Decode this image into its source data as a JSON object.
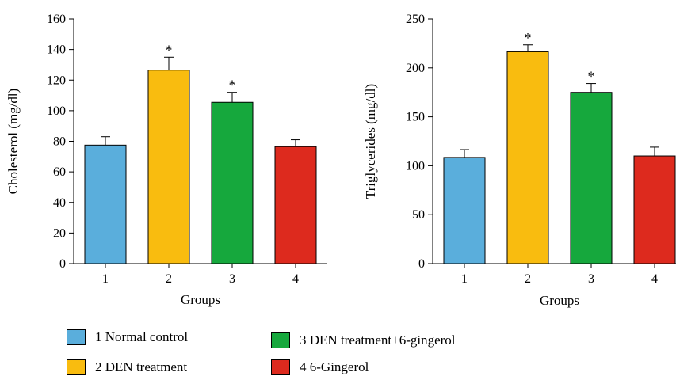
{
  "chart_data": [
    {
      "type": "bar",
      "categories": [
        "1",
        "2",
        "3",
        "4"
      ],
      "values": [
        77.5,
        126.5,
        105.5,
        76.5
      ],
      "errors": [
        5.5,
        8.5,
        6.5,
        4.5
      ],
      "significant": [
        false,
        true,
        true,
        false
      ],
      "significance_marker": "*",
      "xlabel": "Groups",
      "ylabel": "Cholesterol (mg/dl)",
      "ylim": [
        0,
        160
      ],
      "yticks": [
        0,
        20,
        40,
        60,
        80,
        100,
        120,
        140,
        160
      ],
      "colors": [
        "#5aaedc",
        "#f9bc0f",
        "#16a83d",
        "#dd2a1e"
      ]
    },
    {
      "type": "bar",
      "categories": [
        "1",
        "2",
        "3",
        "4"
      ],
      "values": [
        108.5,
        216.5,
        175,
        110
      ],
      "errors": [
        8,
        7,
        9,
        9
      ],
      "significant": [
        false,
        true,
        true,
        false
      ],
      "significance_marker": "*",
      "xlabel": "Groups",
      "ylabel": "Triglycerides (mg/dl)",
      "ylim": [
        0,
        250
      ],
      "yticks": [
        0,
        50,
        100,
        150,
        200,
        250
      ],
      "colors": [
        "#5aaedc",
        "#f9bc0f",
        "#16a83d",
        "#dd2a1e"
      ]
    }
  ],
  "legend": {
    "items": [
      {
        "label": "1 Normal control",
        "color": "#5aaedc"
      },
      {
        "label": "2 DEN treatment",
        "color": "#f9bc0f"
      },
      {
        "label": "3 DEN treatment+6-gingerol",
        "color": "#16a83d"
      },
      {
        "label": "4 6-Gingerol",
        "color": "#dd2a1e"
      }
    ]
  }
}
